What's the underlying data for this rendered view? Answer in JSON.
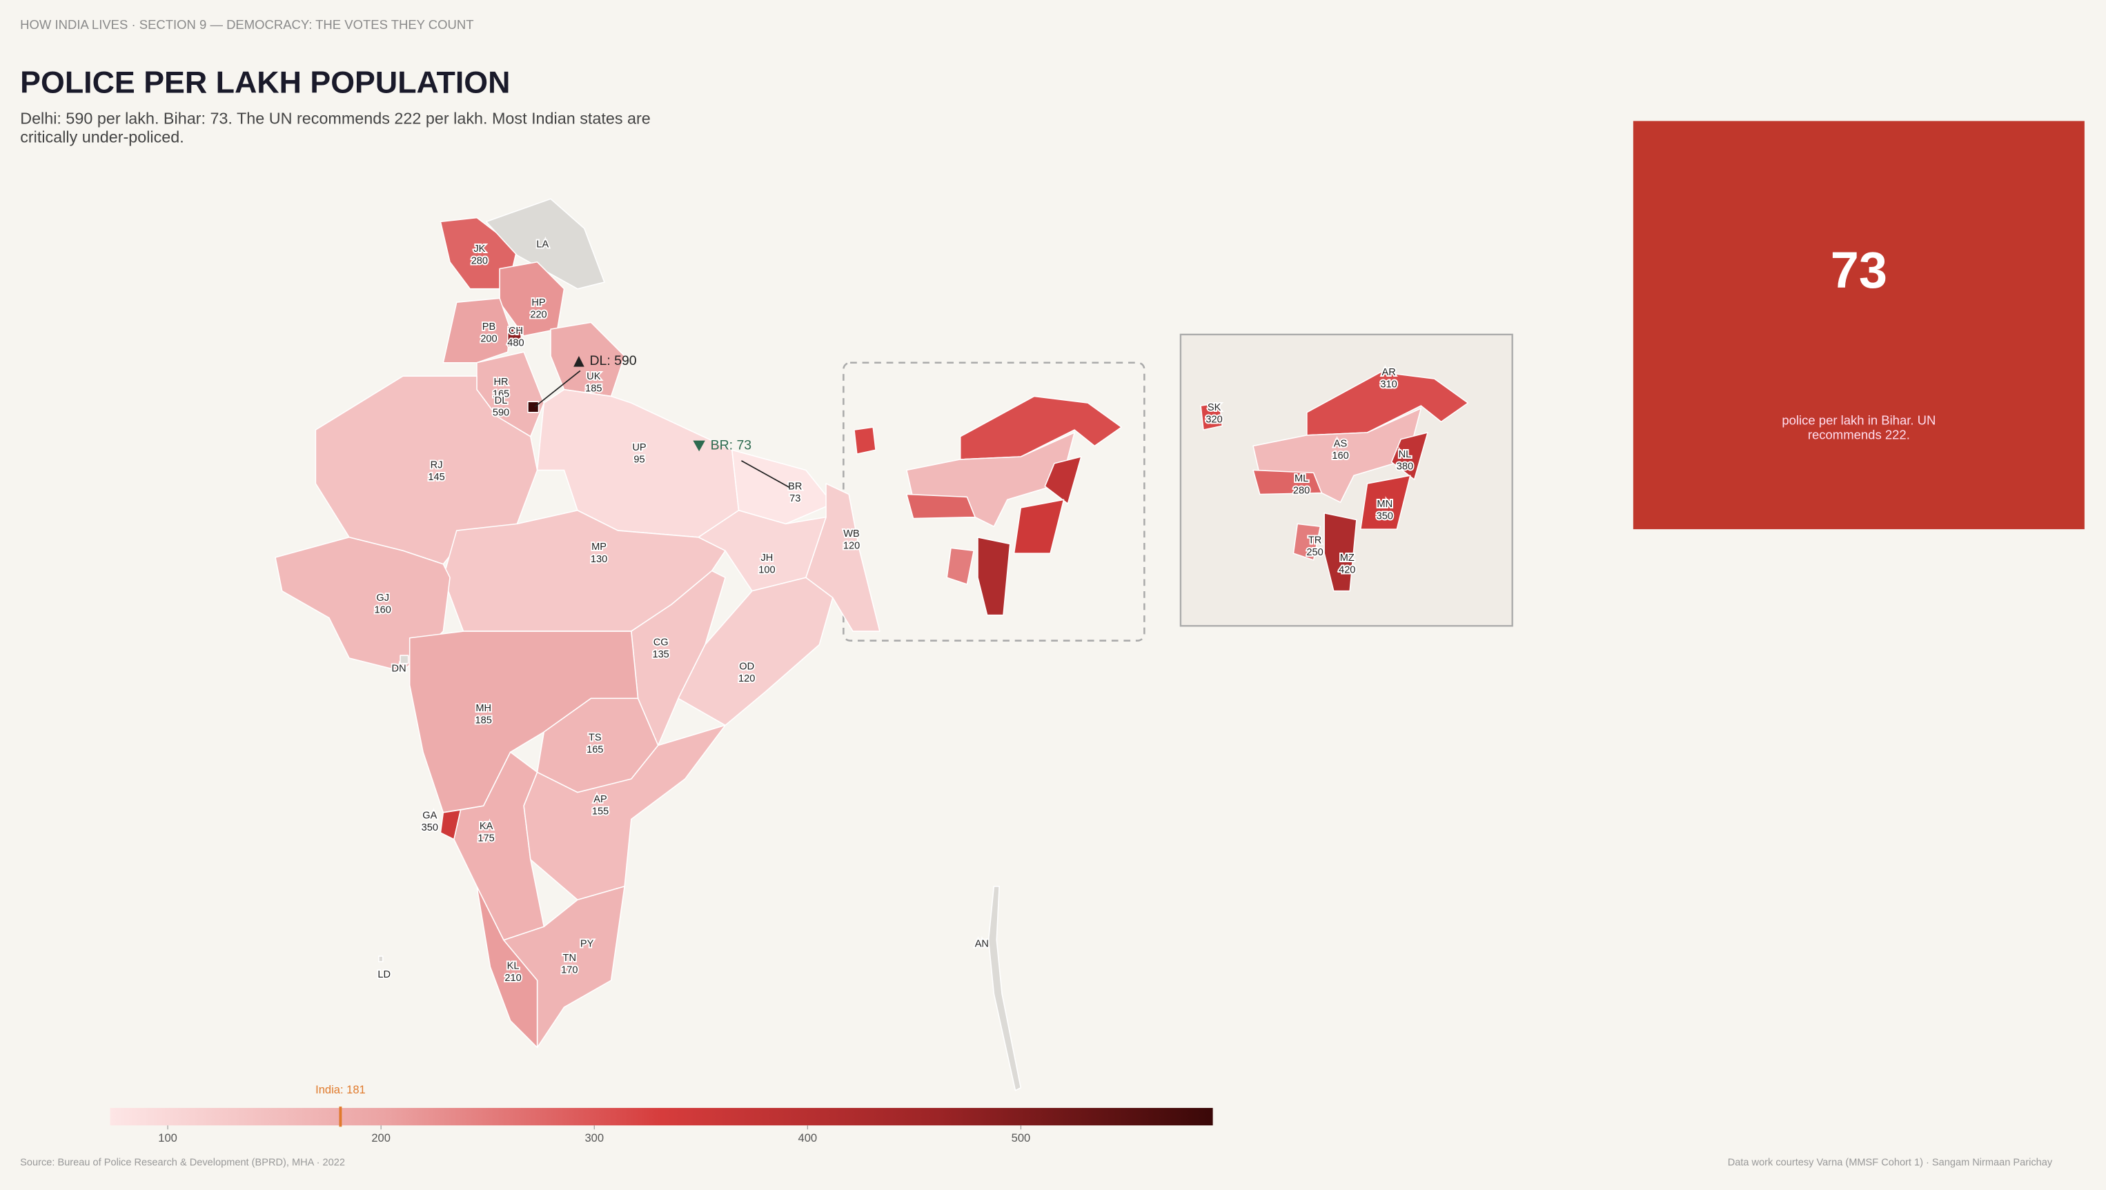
{
  "header": {
    "kicker": "HOW INDIA LIVES  ·  SECTION 9 — DEMOCRACY: THE VOTES THEY COUNT",
    "title": "POLICE PER LAKH POPULATION",
    "subtitle": "Delhi: 590 per lakh. Bihar: 73. The UN recommends 222 per lakh. Most Indian states are critically under-policed."
  },
  "map": {
    "states": [
      {
        "code": "JK",
        "value": 280
      },
      {
        "code": "LA",
        "value": null
      },
      {
        "code": "HP",
        "value": 220
      },
      {
        "code": "PB",
        "value": 200
      },
      {
        "code": "CH",
        "value": 480
      },
      {
        "code": "UK",
        "value": 185
      },
      {
        "code": "HR",
        "value": 165
      },
      {
        "code": "DL",
        "value": 590
      },
      {
        "code": "RJ",
        "value": 145
      },
      {
        "code": "UP",
        "value": 95
      },
      {
        "code": "BR",
        "value": 73
      },
      {
        "code": "WB",
        "value": 120
      },
      {
        "code": "JH",
        "value": 100
      },
      {
        "code": "MP",
        "value": 130
      },
      {
        "code": "GJ",
        "value": 160
      },
      {
        "code": "DN",
        "value": null
      },
      {
        "code": "CG",
        "value": 135
      },
      {
        "code": "OD",
        "value": 120
      },
      {
        "code": "MH",
        "value": 185
      },
      {
        "code": "TS",
        "value": 165
      },
      {
        "code": "GA",
        "value": 350
      },
      {
        "code": "KA",
        "value": 175
      },
      {
        "code": "AP",
        "value": 155
      },
      {
        "code": "PY",
        "value": null
      },
      {
        "code": "TN",
        "value": 170
      },
      {
        "code": "KL",
        "value": 210
      },
      {
        "code": "LD",
        "value": null
      },
      {
        "code": "AN",
        "value": null
      },
      {
        "code": "AR",
        "value": 310
      },
      {
        "code": "SK",
        "value": 320
      },
      {
        "code": "AS",
        "value": 160
      },
      {
        "code": "ML",
        "value": 280
      },
      {
        "code": "NL",
        "value": 380
      },
      {
        "code": "MN",
        "value": 350
      },
      {
        "code": "TR",
        "value": 250
      },
      {
        "code": "MZ",
        "value": 420
      }
    ],
    "callouts": [
      "DL: 590",
      "BR: 73"
    ]
  },
  "scale": {
    "range": [
      73,
      590
    ],
    "colors": [
      "#fde6e6",
      "#eba3a3",
      "#d63c3c",
      "#9c2426",
      "#3a0808"
    ],
    "ticks": [
      100,
      200,
      300,
      400,
      500
    ],
    "marker": {
      "label": "India: 181",
      "value": 181
    }
  },
  "card": {
    "value": 73,
    "text": "police per lakh in Bihar. UN recommends 222."
  },
  "footer": {
    "source": "Source: Bureau of Police Research & Development (BPRD), MHA  ·  2022",
    "credit": "Data work courtesy Varna (MMSF Cohort 1)  ·  Sangam Nirmaan Parichay"
  }
}
